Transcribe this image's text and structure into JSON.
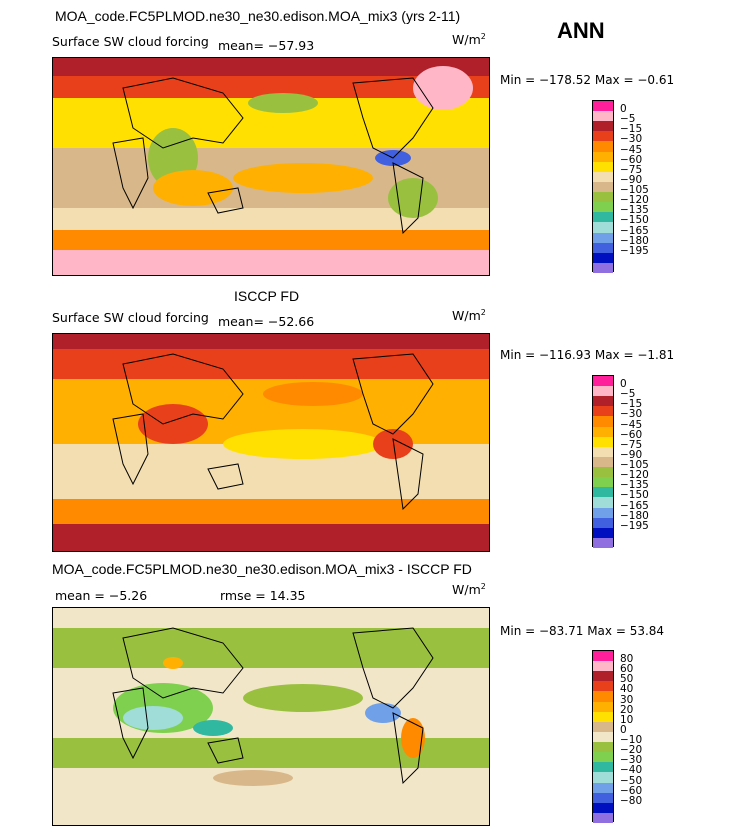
{
  "season_label": "ANN",
  "units_html": "W/m",
  "units_sup": "2",
  "panel1": {
    "title": "MOA_code.FC5PLMOD.ne30_ne30.edison.MOA_mix3 (yrs 2-11)",
    "subtitle": "Surface SW cloud forcing",
    "mean": "mean=  −57.93",
    "minmax": "Min = −178.52  Max =   −0.61"
  },
  "panel2": {
    "title": "ISCCP FD",
    "subtitle": "Surface SW cloud forcing",
    "mean": "mean=  −52.66",
    "minmax": "Min = −116.93  Max =   −1.81"
  },
  "panel3": {
    "title": "MOA_code.FC5PLMOD.ne30_ne30.edison.MOA_mix3 - ISCCP FD",
    "mean": "mean =   −5.26",
    "rmse": "rmse =   14.35",
    "minmax": "Min = −83.71  Max =   53.84"
  },
  "colorbar_abs": {
    "labels": [
      "0",
      "−5",
      "−15",
      "−30",
      "−45",
      "−60",
      "−75",
      "−90",
      "−105",
      "−120",
      "−135",
      "−150",
      "−165",
      "−180",
      "−195"
    ],
    "colors": [
      "#ff1f9a",
      "#ffb6c6",
      "#b0202a",
      "#e8401a",
      "#ff8a00",
      "#ffb000",
      "#ffe000",
      "#f2deb0",
      "#d8b88a",
      "#9ac040",
      "#80d050",
      "#30b8a0",
      "#a0dcd8",
      "#70a0e8",
      "#4060e0",
      "#0010c0",
      "#9070e0"
    ]
  },
  "colorbar_diff": {
    "labels": [
      "80",
      "60",
      "50",
      "40",
      "30",
      "20",
      "10",
      "0",
      "−10",
      "−20",
      "−30",
      "−40",
      "−50",
      "−60",
      "−80"
    ],
    "colors": [
      "#ff1f9a",
      "#ffb6c6",
      "#b0202a",
      "#e8401a",
      "#ff8a00",
      "#ffb000",
      "#ffe000",
      "#d8b88a",
      "#f2e6c8",
      "#9ac040",
      "#80d050",
      "#30b8a0",
      "#a0dcd8",
      "#70a0e8",
      "#4060e0",
      "#0010c0",
      "#9070e0"
    ]
  },
  "chart_data": [
    {
      "type": "heatmap",
      "title": "MOA_code.FC5PLMOD.ne30_ne30.edison.MOA_mix3 (yrs 2-11)",
      "variable": "Surface SW cloud forcing",
      "units": "W/m2",
      "season": "ANN",
      "mean": -57.93,
      "min": -178.52,
      "max": -0.61,
      "contour_levels": [
        0,
        -5,
        -15,
        -30,
        -45,
        -60,
        -75,
        -90,
        -105,
        -120,
        -135,
        -150,
        -165,
        -180,
        -195
      ]
    },
    {
      "type": "heatmap",
      "title": "ISCCP FD",
      "variable": "Surface SW cloud forcing",
      "units": "W/m2",
      "season": "ANN",
      "mean": -52.66,
      "min": -116.93,
      "max": -1.81,
      "contour_levels": [
        0,
        -5,
        -15,
        -30,
        -45,
        -60,
        -75,
        -90,
        -105,
        -120,
        -135,
        -150,
        -165,
        -180,
        -195
      ]
    },
    {
      "type": "heatmap",
      "title": "MOA_code.FC5PLMOD.ne30_ne30.edison.MOA_mix3 - ISCCP FD",
      "units": "W/m2",
      "season": "ANN",
      "mean": -5.26,
      "rmse": 14.35,
      "min": -83.71,
      "max": 53.84,
      "contour_levels": [
        80,
        60,
        50,
        40,
        30,
        20,
        10,
        0,
        -10,
        -20,
        -30,
        -40,
        -50,
        -60,
        -80
      ]
    }
  ]
}
